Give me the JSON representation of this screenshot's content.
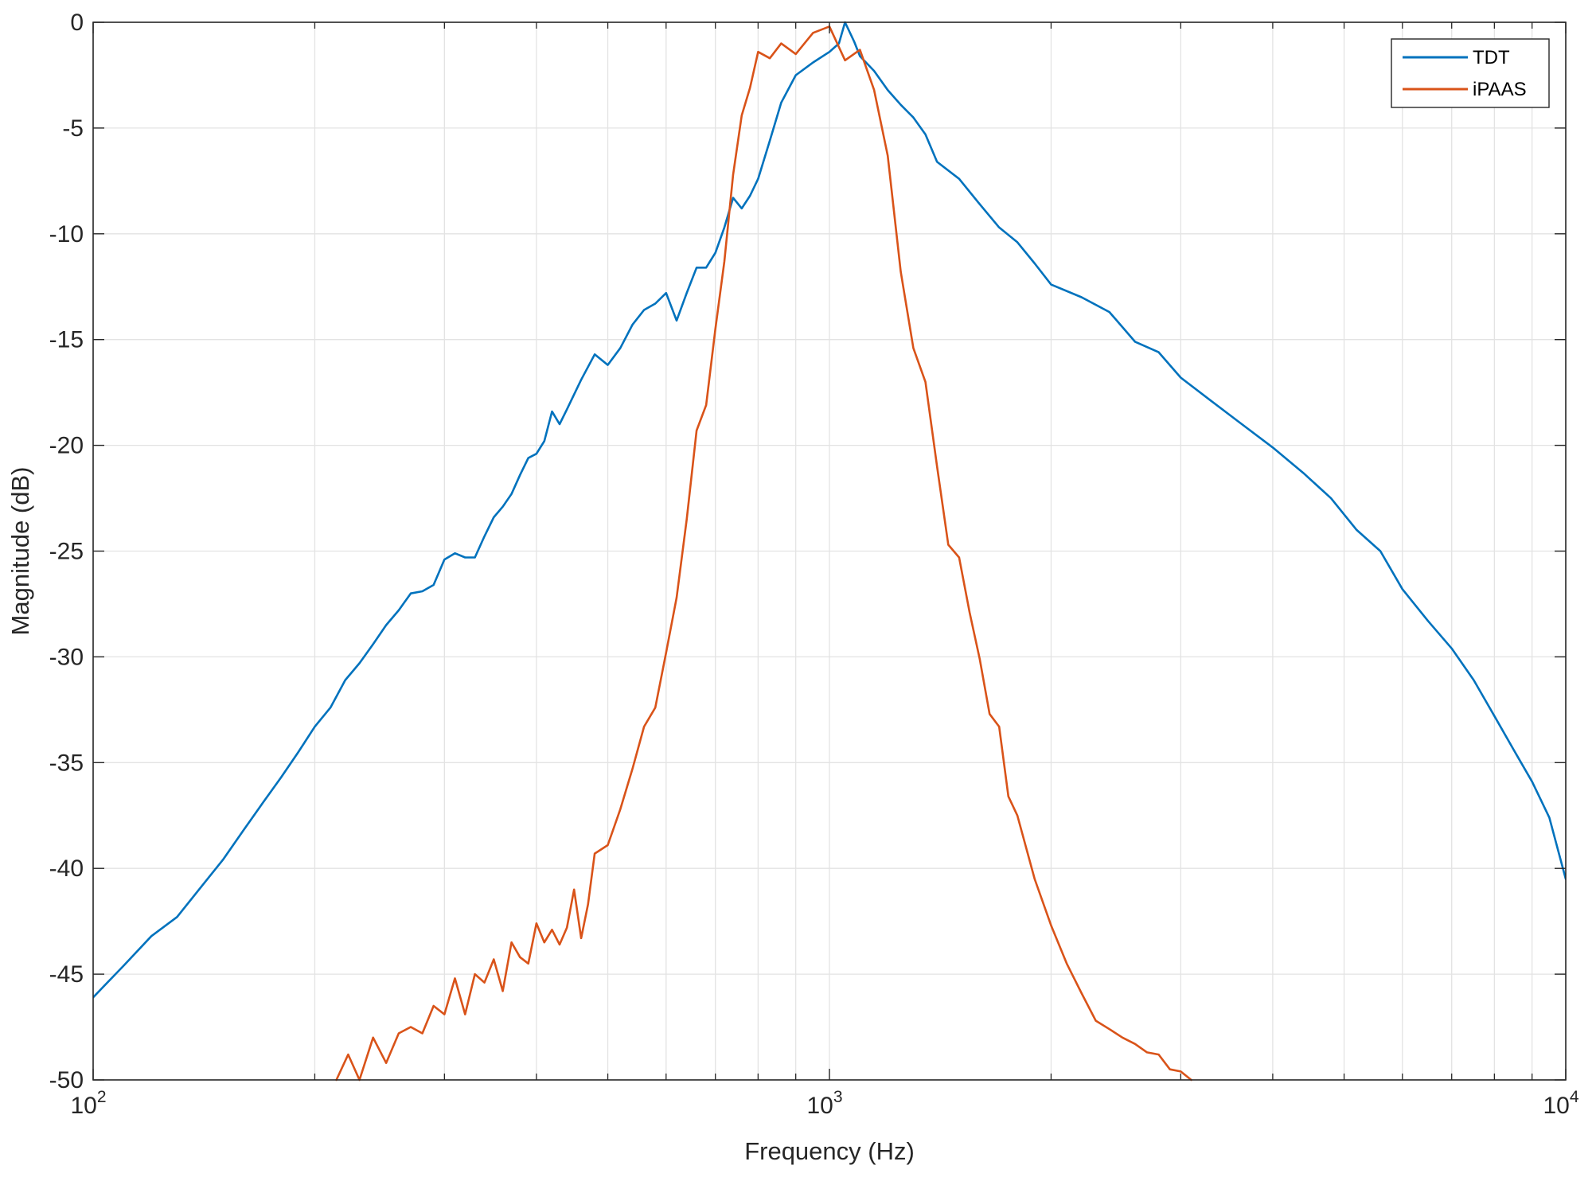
{
  "chart_data": {
    "type": "line",
    "title": "",
    "xlabel": "Frequency (Hz)",
    "ylabel": "Magnitude (dB)",
    "xscale": "log",
    "xlim": [
      100,
      10000
    ],
    "ylim": [
      -50,
      0
    ],
    "grid": true,
    "legend_position": "top-right",
    "x_ticks": [
      {
        "value": 100,
        "base": "10",
        "exp": "2"
      },
      {
        "value": 1000,
        "base": "10",
        "exp": "3"
      },
      {
        "value": 10000,
        "base": "10",
        "exp": "4"
      }
    ],
    "y_ticks": [
      {
        "value": 0,
        "label": "0"
      },
      {
        "value": -5,
        "label": "-5"
      },
      {
        "value": -10,
        "label": "-10"
      },
      {
        "value": -15,
        "label": "-15"
      },
      {
        "value": -20,
        "label": "-20"
      },
      {
        "value": -25,
        "label": "-25"
      },
      {
        "value": -30,
        "label": "-30"
      },
      {
        "value": -35,
        "label": "-35"
      },
      {
        "value": -40,
        "label": "-40"
      },
      {
        "value": -45,
        "label": "-45"
      },
      {
        "value": -50,
        "label": "-50"
      }
    ],
    "series": [
      {
        "name": "TDT",
        "color": "#0072BD",
        "x": [
          100,
          110,
          120,
          130,
          140,
          150,
          160,
          170,
          180,
          190,
          200,
          210,
          220,
          230,
          240,
          250,
          260,
          270,
          280,
          290,
          300,
          310,
          320,
          330,
          340,
          350,
          360,
          370,
          380,
          390,
          400,
          410,
          420,
          430,
          440,
          460,
          480,
          500,
          520,
          540,
          560,
          580,
          600,
          620,
          640,
          660,
          680,
          700,
          720,
          740,
          760,
          780,
          800,
          830,
          860,
          900,
          950,
          1000,
          1030,
          1050,
          1080,
          1100,
          1150,
          1200,
          1250,
          1300,
          1350,
          1400,
          1500,
          1600,
          1700,
          1800,
          1900,
          2000,
          2200,
          2400,
          2600,
          2800,
          3000,
          3300,
          3600,
          4000,
          4400,
          4800,
          5200,
          5600,
          6000,
          6500,
          7000,
          7500,
          8000,
          8500,
          9000,
          9500,
          10000
        ],
        "y": [
          -46.1,
          -44.6,
          -43.2,
          -42.3,
          -40.9,
          -39.6,
          -38.2,
          -36.9,
          -35.7,
          -34.5,
          -33.3,
          -32.4,
          -31.1,
          -30.3,
          -29.4,
          -28.5,
          -27.8,
          -27.0,
          -26.9,
          -26.6,
          -25.4,
          -25.1,
          -25.3,
          -25.3,
          -24.3,
          -23.4,
          -22.9,
          -22.3,
          -21.4,
          -20.6,
          -20.4,
          -19.8,
          -18.4,
          -19.0,
          -18.3,
          -16.9,
          -15.7,
          -16.2,
          -15.4,
          -14.3,
          -13.6,
          -13.3,
          -12.8,
          -14.1,
          -12.8,
          -11.6,
          -11.6,
          -10.9,
          -9.7,
          -8.3,
          -8.8,
          -8.2,
          -7.4,
          -5.6,
          -3.8,
          -2.5,
          -1.9,
          -1.4,
          -1.0,
          0.0,
          -0.9,
          -1.6,
          -2.3,
          -3.2,
          -3.9,
          -4.5,
          -5.3,
          -6.6,
          -7.4,
          -8.6,
          -9.7,
          -10.4,
          -11.4,
          -12.4,
          -13.0,
          -13.7,
          -15.1,
          -15.6,
          -16.8,
          -17.9,
          -18.9,
          -20.1,
          -21.3,
          -22.5,
          -24.0,
          -25.0,
          -26.8,
          -28.3,
          -29.6,
          -31.1,
          -32.8,
          -34.4,
          -35.9,
          -37.6,
          -40.5
        ]
      },
      {
        "name": "iPAAS",
        "color": "#D95319",
        "x": [
          214,
          222,
          230,
          240,
          250,
          260,
          270,
          280,
          290,
          300,
          310,
          320,
          330,
          340,
          350,
          360,
          370,
          380,
          390,
          400,
          410,
          420,
          430,
          440,
          450,
          460,
          470,
          480,
          500,
          520,
          540,
          560,
          580,
          600,
          620,
          640,
          660,
          680,
          700,
          720,
          740,
          760,
          780,
          800,
          830,
          860,
          900,
          950,
          1000,
          1050,
          1100,
          1150,
          1200,
          1250,
          1300,
          1350,
          1400,
          1450,
          1500,
          1550,
          1600,
          1650,
          1700,
          1750,
          1800,
          1900,
          2000,
          2100,
          2200,
          2300,
          2400,
          2500,
          2600,
          2700,
          2800,
          2900,
          3000,
          3100
        ],
        "y": [
          -50.0,
          -48.8,
          -50.0,
          -48.0,
          -49.2,
          -47.8,
          -47.5,
          -47.8,
          -46.5,
          -46.9,
          -45.2,
          -46.9,
          -45.0,
          -45.4,
          -44.3,
          -45.8,
          -43.5,
          -44.2,
          -44.5,
          -42.6,
          -43.5,
          -42.9,
          -43.6,
          -42.8,
          -41.0,
          -43.3,
          -41.7,
          -39.3,
          -38.9,
          -37.2,
          -35.3,
          -33.3,
          -32.4,
          -29.8,
          -27.2,
          -23.5,
          -19.3,
          -18.1,
          -14.5,
          -11.3,
          -7.2,
          -4.4,
          -3.1,
          -1.4,
          -1.7,
          -1.0,
          -1.5,
          -0.5,
          -0.2,
          -1.8,
          -1.3,
          -3.2,
          -6.3,
          -11.8,
          -15.4,
          -17.0,
          -21.0,
          -24.7,
          -25.3,
          -27.9,
          -30.1,
          -32.7,
          -33.3,
          -36.6,
          -37.5,
          -40.5,
          -42.7,
          -44.5,
          -45.9,
          -47.2,
          -47.6,
          -48.0,
          -48.3,
          -48.7,
          -48.8,
          -49.5,
          -49.6,
          -50.0
        ]
      }
    ]
  }
}
